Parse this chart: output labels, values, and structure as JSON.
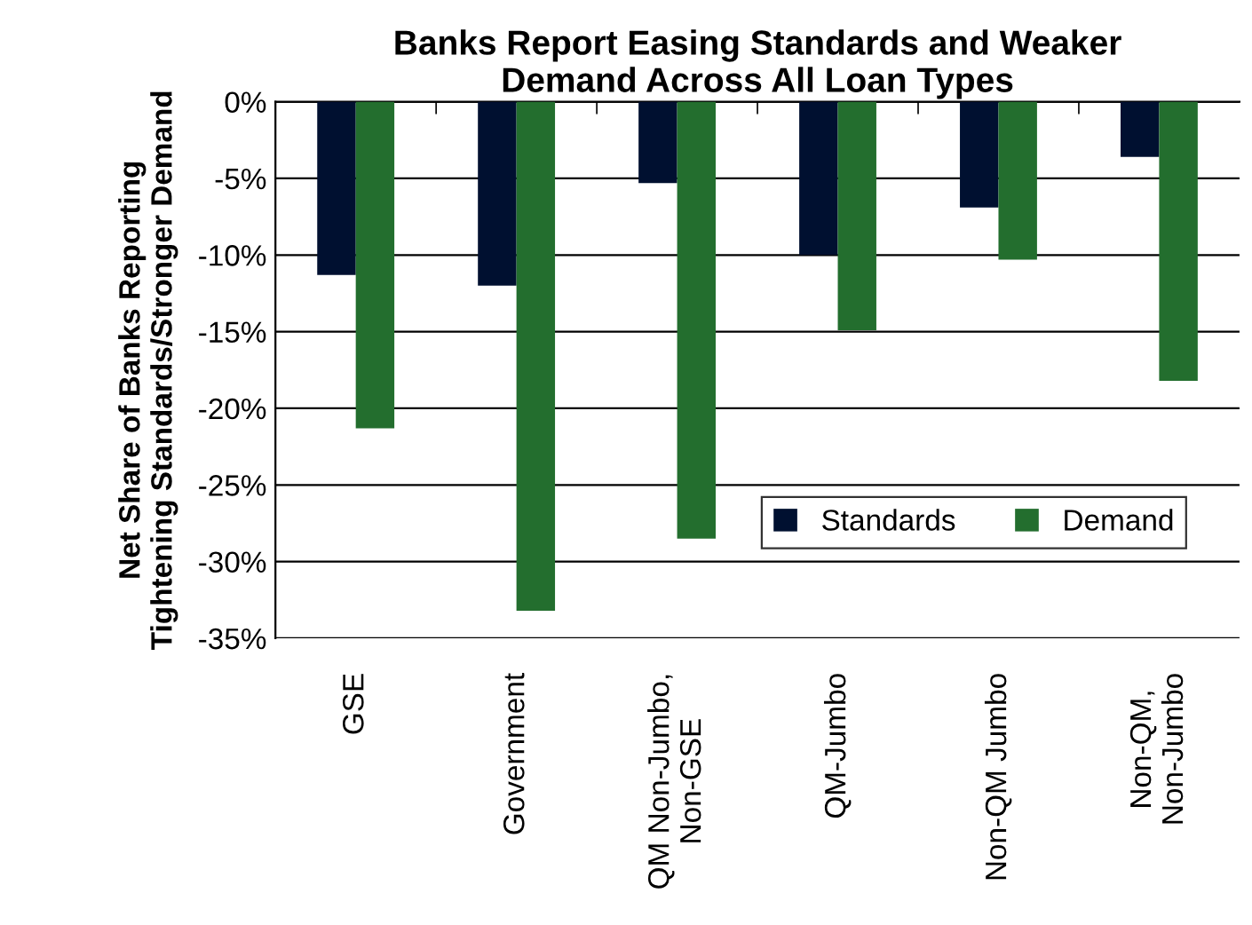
{
  "chart_data": {
    "type": "bar",
    "title": "Banks Report Easing Standards and Weaker\nDemand Across All Loan Types",
    "ylabel": "Net Share of Banks Reporting\nTightening Standards/Stronger Demand",
    "categories": [
      "GSE",
      "Government",
      "QM Non-Jumbo,\nNon-GSE",
      "QM-Jumbo",
      "Non-QM Jumbo",
      "Non-QM,\nNon-Jumbo"
    ],
    "series": [
      {
        "name": "Standards",
        "color": "#001030",
        "values": [
          -11.3,
          -12.0,
          -5.3,
          -10.0,
          -6.9,
          -3.6
        ]
      },
      {
        "name": "Demand",
        "color": "#236e2e",
        "values": [
          -21.3,
          -33.2,
          -28.5,
          -14.9,
          -10.3,
          -18.2
        ]
      }
    ],
    "ylim": [
      -35,
      0
    ],
    "yticks": [
      {
        "value": 0,
        "label": "0%"
      },
      {
        "value": -5,
        "label": "-5%"
      },
      {
        "value": -10,
        "label": "-10%"
      },
      {
        "value": -15,
        "label": "-15%"
      },
      {
        "value": -20,
        "label": "-20%"
      },
      {
        "value": -25,
        "label": "-25%"
      },
      {
        "value": -30,
        "label": "-30%"
      },
      {
        "value": -35,
        "label": "-35%"
      }
    ],
    "grid": "y",
    "legend": "bottom right"
  }
}
